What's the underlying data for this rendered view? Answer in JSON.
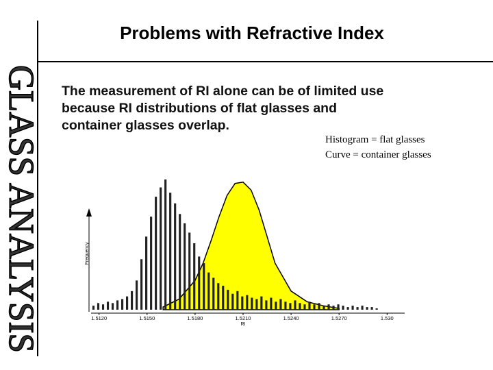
{
  "slide": {
    "title": "Problems with Refractive Index",
    "side_title": "GLASS ANALYSIS",
    "body": [
      "The measurement of RI alone can be of limited use",
      "because RI distributions of flat glasses and",
      "container glasses overlap."
    ],
    "notes": [
      "Histogram = flat glasses",
      "Curve = container glasses"
    ]
  },
  "chart_data": {
    "type": "histogram",
    "x_label": "RI",
    "y_label": "Frequency",
    "bins": [
      1.5115,
      1.5118,
      1.5121,
      1.5124,
      1.5127,
      1.513,
      1.5133,
      1.5136,
      1.5139,
      1.5142,
      1.5145,
      1.5148,
      1.5151,
      1.5154,
      1.5157,
      1.516,
      1.5163,
      1.5166,
      1.5169,
      1.5172,
      1.5175,
      1.5178,
      1.5181,
      1.5184,
      1.5187,
      1.519,
      1.5193,
      1.5196,
      1.5199,
      1.5202,
      1.5205,
      1.5208,
      1.5211,
      1.5214,
      1.5217,
      1.522,
      1.5223,
      1.5226,
      1.5229,
      1.5232,
      1.5235,
      1.5238,
      1.5241,
      1.5244,
      1.5247,
      1.525,
      1.5253,
      1.5256,
      1.5259,
      1.5262,
      1.5265,
      1.5268,
      1.5271,
      1.5274,
      1.5277,
      1.528,
      1.5283,
      1.5286,
      1.5289,
      1.5292,
      1.5295
    ],
    "values": [
      3,
      5,
      4,
      6,
      5,
      7,
      8,
      10,
      14,
      22,
      38,
      55,
      70,
      85,
      92,
      98,
      88,
      80,
      72,
      65,
      58,
      50,
      40,
      35,
      28,
      24,
      20,
      18,
      15,
      12,
      14,
      10,
      11,
      9,
      8,
      10,
      7,
      9,
      6,
      8,
      6,
      5,
      7,
      5,
      4,
      6,
      4,
      5,
      3,
      4,
      3,
      4,
      3,
      2,
      3,
      2,
      3,
      2,
      2,
      1
    ],
    "color": "#222222",
    "curve": {
      "x": [
        1.516,
        1.517,
        1.518,
        1.5185,
        1.519,
        1.5195,
        1.52,
        1.5205,
        1.521,
        1.5215,
        1.522,
        1.5225,
        1.523,
        1.524,
        1.525,
        1.526,
        1.527
      ],
      "values": [
        2,
        8,
        22,
        35,
        52,
        70,
        86,
        95,
        96,
        90,
        75,
        55,
        35,
        14,
        6,
        3,
        1
      ],
      "color": "#ffff00"
    },
    "xlim": [
      1.5115,
      1.5305
    ],
    "ylim": [
      0,
      100
    ],
    "xticks": [
      {
        "value": 1.512,
        "label": "1.5120"
      },
      {
        "value": 1.515,
        "label": "1.5150"
      },
      {
        "value": 1.518,
        "label": "1.5180"
      },
      {
        "value": 1.521,
        "label": "1.5210"
      },
      {
        "value": 1.524,
        "label": "1.5240"
      },
      {
        "value": 1.527,
        "label": "1.5270"
      },
      {
        "value": 1.53,
        "label": "1.530"
      }
    ]
  }
}
